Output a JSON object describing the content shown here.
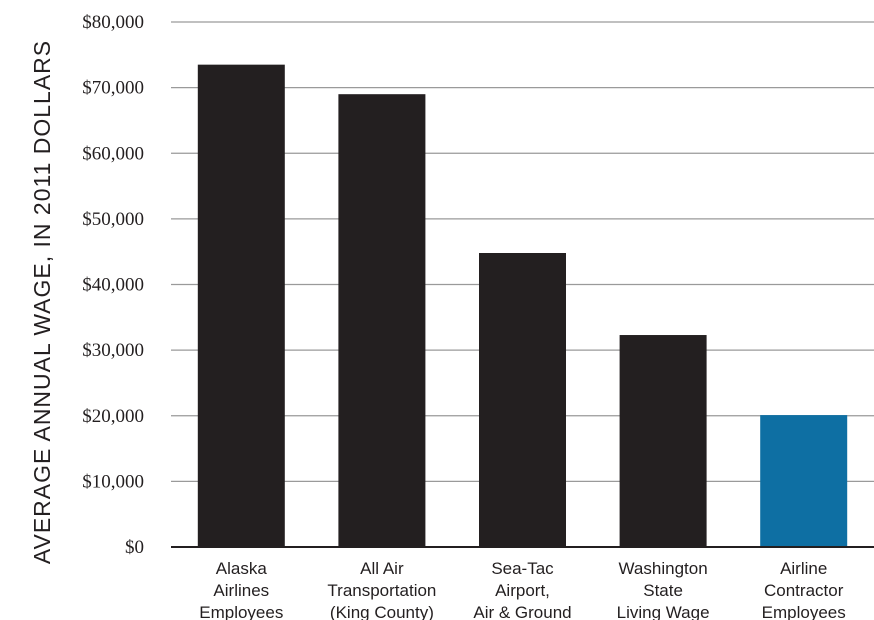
{
  "chart_data": {
    "type": "bar",
    "title": "",
    "xlabel": "",
    "ylabel": "AVERAGE ANNUAL WAGE, IN 2011 DOLLARS",
    "ylim": [
      0,
      80000
    ],
    "yticks": [
      0,
      10000,
      20000,
      30000,
      40000,
      50000,
      60000,
      70000,
      80000
    ],
    "ytick_labels": [
      "$0",
      "$10,000",
      "$20,000",
      "$30,000",
      "$40,000",
      "$50,000",
      "$60,000",
      "$70,000",
      "$80,000"
    ],
    "grid": true,
    "categories": [
      [
        "Alaska",
        "Airlines",
        "Employees"
      ],
      [
        "All Air",
        "Transportation",
        "(King County)"
      ],
      [
        "Sea-Tac",
        "Airport,",
        "Air & Ground"
      ],
      [
        "Washington",
        "State",
        "Living Wage"
      ],
      [
        "Airline",
        "Contractor",
        "Employees"
      ]
    ],
    "values": [
      73500,
      69000,
      44800,
      32300,
      20100
    ],
    "colors": [
      "#231f20",
      "#231f20",
      "#231f20",
      "#231f20",
      "#0e6fa3"
    ],
    "colors_meaning": {
      "default_bar": "#231f20",
      "highlight_bar": "#0e6fa3",
      "grid": "#9a9a9a"
    }
  }
}
